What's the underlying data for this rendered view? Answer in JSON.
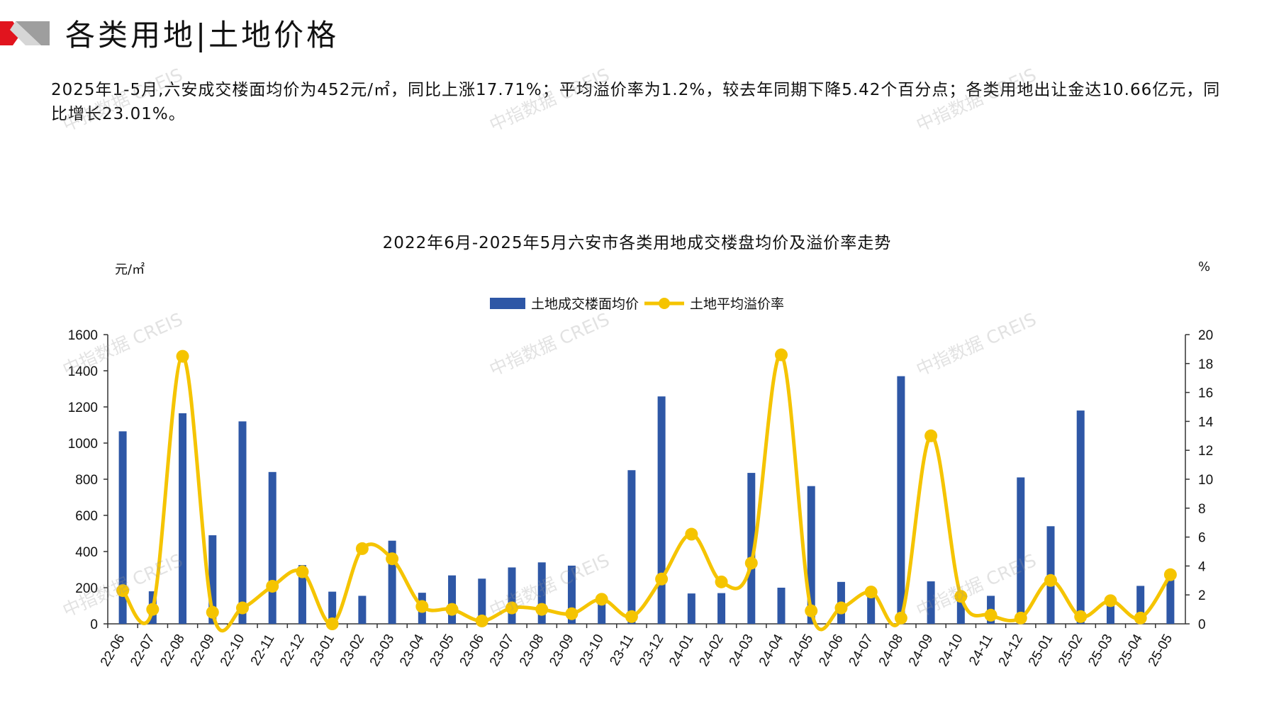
{
  "header": {
    "title": "各类用地|土地价格"
  },
  "summary": {
    "text": "2025年1-5月,六安成交楼面均价为452元/㎡，同比上涨17.71%；平均溢价率为1.2%，较去年同期下降5.42个百分点；各类用地出让金达10.66亿元，同比增长23.01%。"
  },
  "watermark": {
    "text": "中指数据 CREIS"
  },
  "chart_data": {
    "type": "bar",
    "title": "2022年6月-2025年5月六安市各类用地成交楼盘均价及溢价率走势",
    "ylabel": "元/㎡",
    "y2label": "%",
    "ylim": [
      0,
      1600
    ],
    "y2lim": [
      0,
      20
    ],
    "yticks": [
      "0",
      "200",
      "400",
      "600",
      "800",
      "1000",
      "1200",
      "1400",
      "1600"
    ],
    "y2ticks": [
      "0",
      "2",
      "4",
      "6",
      "8",
      "10",
      "12",
      "14",
      "16",
      "18",
      "20"
    ],
    "legend_position": "top-center",
    "grid": false,
    "categories": [
      "22-06",
      "22-07",
      "22-08",
      "22-09",
      "22-10",
      "22-11",
      "22-12",
      "23-01",
      "23-02",
      "23-03",
      "23-04",
      "23-05",
      "23-06",
      "23-07",
      "23-08",
      "23-09",
      "23-10",
      "23-11",
      "23-12",
      "24-01",
      "24-02",
      "24-03",
      "24-04",
      "24-05",
      "24-06",
      "24-07",
      "24-08",
      "24-09",
      "24-10",
      "24-11",
      "24-12",
      "25-01",
      "25-02",
      "25-03",
      "25-04",
      "25-05"
    ],
    "series": [
      {
        "name": "土地成交楼面均价",
        "type": "bar",
        "axis": "left",
        "color": "#2E57A6",
        "values": [
          1065,
          180,
          1165,
          490,
          1120,
          840,
          325,
          178,
          155,
          460,
          172,
          268,
          250,
          312,
          340,
          322,
          155,
          850,
          1258,
          168,
          170,
          835,
          200,
          762,
          232,
          178,
          1370,
          235,
          175,
          155,
          810,
          540,
          1180,
          130,
          210,
          250
        ]
      },
      {
        "name": "土地平均溢价率",
        "type": "line",
        "axis": "right",
        "color": "#F5C400",
        "values": [
          2.3,
          1.0,
          18.5,
          0.8,
          1.1,
          2.6,
          3.6,
          0.0,
          5.2,
          4.5,
          1.2,
          1.0,
          0.2,
          1.1,
          1.0,
          0.7,
          1.7,
          0.5,
          3.1,
          6.2,
          2.9,
          4.2,
          18.6,
          0.9,
          1.1,
          2.2,
          0.4,
          13.0,
          1.9,
          0.6,
          0.4,
          3.0,
          0.5,
          1.6,
          0.4,
          3.4
        ]
      }
    ]
  }
}
